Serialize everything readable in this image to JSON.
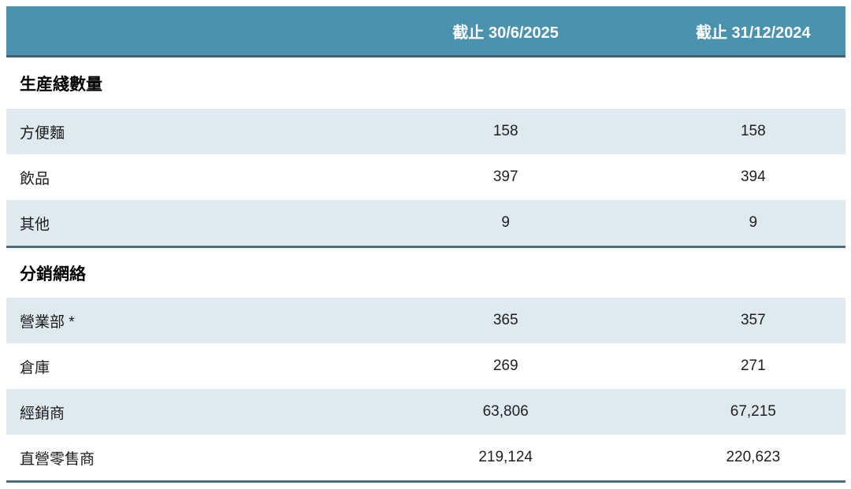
{
  "colors": {
    "header_bg": "#4b92ae",
    "header_text": "#ffffff",
    "row_alt_bg": "#dfeaf0",
    "divider": "#4d6b78",
    "text": "#1a1a1a"
  },
  "table": {
    "columns": [
      "",
      "截止 30/6/2025",
      "截止 31/12/2024"
    ],
    "sections": [
      {
        "title": "生産綫數量",
        "rows": [
          {
            "label": "方便麵",
            "v1": "158",
            "v2": "158"
          },
          {
            "label": "飲品",
            "v1": "397",
            "v2": "394"
          },
          {
            "label": "其他",
            "v1": "9",
            "v2": "9"
          }
        ]
      },
      {
        "title": "分銷網絡",
        "rows": [
          {
            "label": "營業部 *",
            "v1": "365",
            "v2": "357"
          },
          {
            "label": "倉庫",
            "v1": "269",
            "v2": "271"
          },
          {
            "label": "經銷商",
            "v1": "63,806",
            "v2": "67,215"
          },
          {
            "label": "直營零售商",
            "v1": "219,124",
            "v2": "220,623"
          }
        ]
      }
    ]
  }
}
